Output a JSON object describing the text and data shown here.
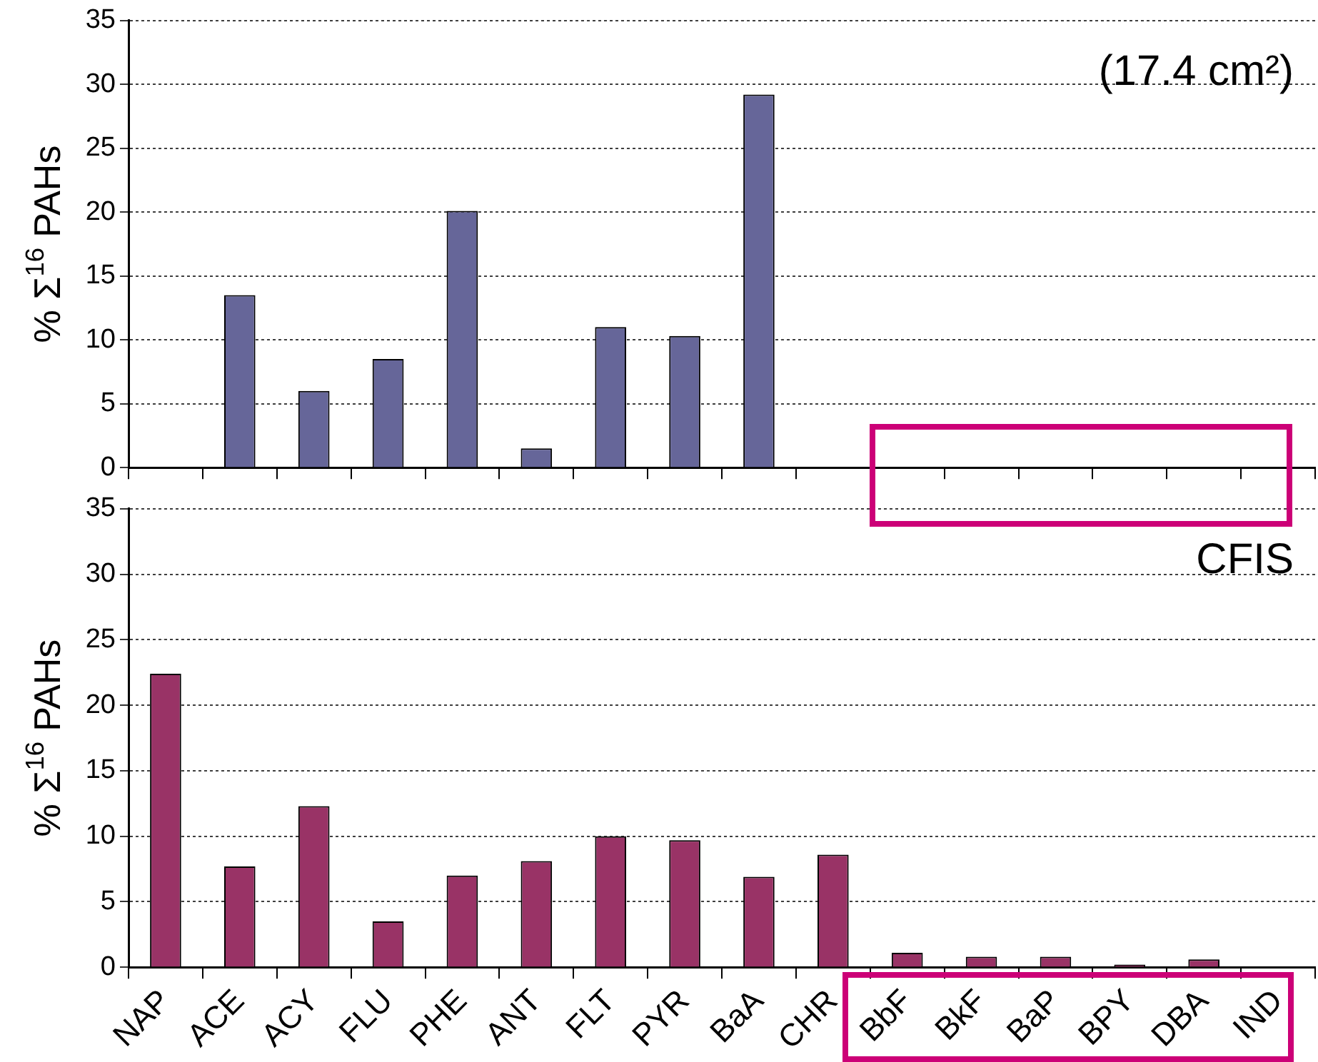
{
  "chart_data": [
    {
      "type": "bar",
      "ylabel": "% Σ$^{16}$ PAHs",
      "categories": [
        null,
        null,
        null,
        null,
        null,
        null,
        null,
        null,
        null,
        null,
        null,
        null,
        null,
        null,
        null,
        null
      ],
      "values": [
        0,
        13.5,
        6,
        8.5,
        20.1,
        1.5,
        11,
        10.3,
        29.2,
        0,
        0,
        0,
        0,
        0,
        0,
        0
      ],
      "color": "#666699",
      "ylim": [
        0,
        35
      ],
      "yticks": [
        0,
        5,
        10,
        15,
        20,
        25,
        30,
        35
      ],
      "grid": "y",
      "legend": false,
      "tick_labels": "y",
      "annotations": [
        "(17.4 cm²)"
      ]
    },
    {
      "type": "bar",
      "ylabel": "% Σ$^{16}$ PAHs",
      "categories": [
        "NAP",
        "ACE",
        "ACY",
        "FLU",
        "PHE",
        "ANT",
        "FLT",
        "PYR",
        "BaA",
        "CHR",
        "BbF",
        "BkF",
        "BaP",
        "BPY",
        "DBA",
        "IND"
      ],
      "values": [
        22.4,
        7.7,
        12.3,
        3.5,
        7,
        8.1,
        10,
        9.7,
        6.9,
        8.6,
        1.1,
        0.8,
        0.8,
        0.2,
        0.6,
        0
      ],
      "color": "#993366",
      "ylim": [
        0,
        35
      ],
      "yticks": [
        0,
        5,
        10,
        15,
        20,
        25,
        30,
        35
      ],
      "grid": "y",
      "legend": false,
      "annotations": [
        "CFIS"
      ]
    }
  ]
}
